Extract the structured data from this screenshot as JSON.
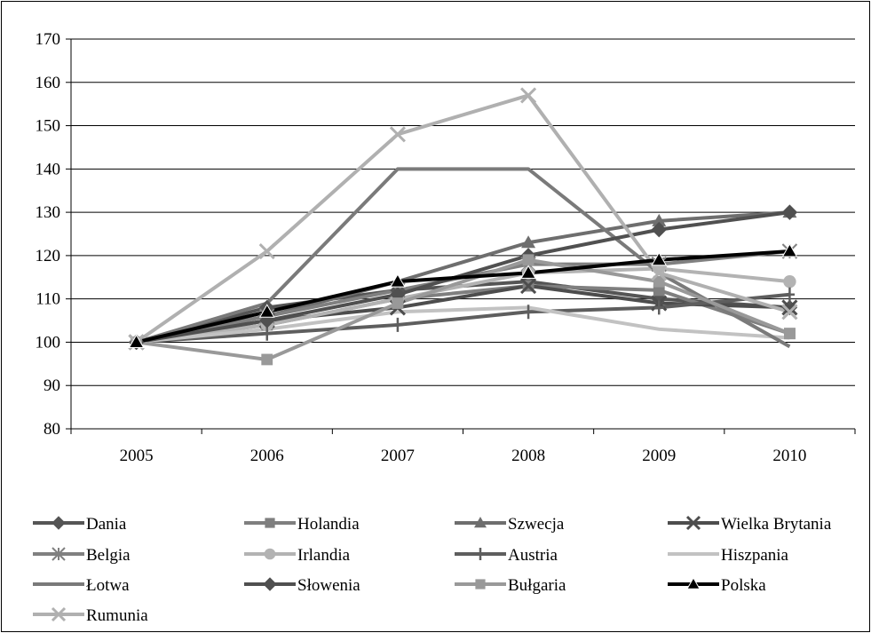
{
  "chart_data": {
    "type": "line",
    "categories": [
      "2005",
      "2006",
      "2007",
      "2008",
      "2009",
      "2010"
    ],
    "ylim": [
      80,
      170
    ],
    "yticks": [
      80,
      90,
      100,
      110,
      120,
      130,
      140,
      150,
      160,
      170
    ],
    "grid": "horizontal",
    "legend_position": "bottom",
    "series": [
      {
        "name": "Dania",
        "values": [
          100,
          108,
          112,
          114,
          110,
          108
        ],
        "color": "#555555",
        "marker": "diamond"
      },
      {
        "name": "Holandia",
        "values": [
          100,
          104,
          110,
          113,
          112,
          102
        ],
        "color": "#7f7f7f",
        "marker": "square"
      },
      {
        "name": "Szwecja",
        "values": [
          100,
          106,
          114,
          123,
          128,
          130
        ],
        "color": "#6e6e6e",
        "marker": "triangle"
      },
      {
        "name": "Wielka Brytania",
        "values": [
          100,
          105,
          108,
          113,
          109,
          108
        ],
        "color": "#4d4d4d",
        "marker": "x"
      },
      {
        "name": "Belgia",
        "values": [
          100,
          106,
          112,
          118,
          118,
          121
        ],
        "color": "#808080",
        "marker": "star"
      },
      {
        "name": "Irlandia",
        "values": [
          100,
          104,
          110,
          116,
          117,
          114
        ],
        "color": "#b3b3b3",
        "marker": "circle"
      },
      {
        "name": "Austria",
        "values": [
          100,
          102,
          104,
          107,
          108,
          111
        ],
        "color": "#5e5e5e",
        "marker": "plus"
      },
      {
        "name": "Hiszpania",
        "values": [
          100,
          103,
          107,
          108,
          103,
          101
        ],
        "color": "#c2c2c2",
        "marker": "none"
      },
      {
        "name": "Łotwa",
        "values": [
          100,
          109,
          140,
          140,
          116,
          99
        ],
        "color": "#7a7a7a",
        "marker": "none"
      },
      {
        "name": "Słowenia",
        "values": [
          100,
          105,
          111,
          120,
          126,
          130
        ],
        "color": "#505050",
        "marker": "diamond"
      },
      {
        "name": "Bułgaria",
        "values": [
          100,
          96,
          109,
          119,
          114,
          102
        ],
        "color": "#999999",
        "marker": "square"
      },
      {
        "name": "Polska",
        "values": [
          100,
          107,
          114,
          116,
          119,
          121
        ],
        "color": "#000000",
        "marker": "triangle"
      },
      {
        "name": "Rumunia",
        "values": [
          100,
          121,
          148,
          157,
          116,
          107
        ],
        "color": "#b0b0b0",
        "marker": "x"
      }
    ]
  }
}
